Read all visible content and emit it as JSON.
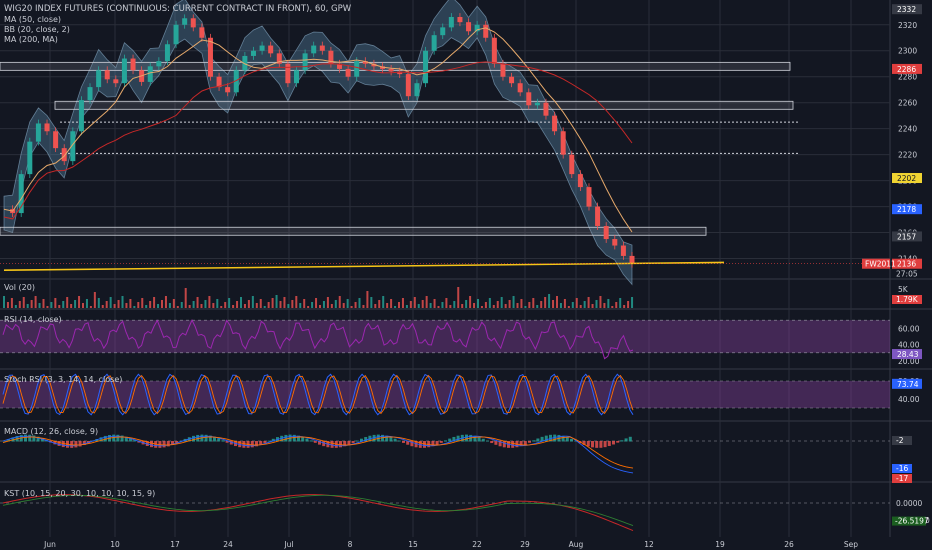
{
  "title": "WIG20 INDEX FUTURES (CONTINUOUS: CURRENT CONTRACT IN FRONT), 60, GPW",
  "indicator_labels": [
    "MA (50, close)",
    "BB (20, close, 2)",
    "MA (200, MA)"
  ],
  "pane_labels": {
    "vol": "Vol (20)",
    "rsi": "RSI (14, close)",
    "stoch": "Stoch RSI (3, 3, 14, 14, close)",
    "macd": "MACD (12, 26, close, 9)",
    "kst": "KST (10, 15, 20, 30, 10, 10, 10, 15, 9)"
  },
  "chart_data": {
    "type": "line",
    "x_ticks": [
      "Jun",
      "10",
      "17",
      "24",
      "Jul",
      "8",
      "15",
      "22",
      "29",
      "Aug",
      "12",
      "19",
      "26",
      "Sep"
    ],
    "price_axis": {
      "ticks": [
        "2320",
        "2300",
        "2280",
        "2260",
        "2240",
        "2220",
        "2200",
        "2180",
        "2160",
        "2140"
      ],
      "ylim": [
        2125,
        2336
      ]
    },
    "price_series": {
      "name": "",
      "values": [
        2178,
        2175,
        2205,
        2230,
        2244,
        2238,
        2225,
        2215,
        2238,
        2262,
        2272,
        2285,
        2278,
        2275,
        2294,
        2285,
        2276,
        2288,
        2292,
        2305,
        2320,
        2325,
        2318,
        2310,
        2280,
        2272,
        2268,
        2285,
        2296,
        2300,
        2304,
        2298,
        2290,
        2275,
        2285,
        2298,
        2304,
        2300,
        2290,
        2286,
        2280,
        2292,
        2290,
        2288,
        2286,
        2284,
        2282,
        2265,
        2275,
        2300,
        2312,
        2318,
        2326,
        2322,
        2315,
        2320,
        2310,
        2290,
        2280,
        2275,
        2268,
        2258,
        2260,
        2250,
        2238,
        2220,
        2205,
        2195,
        2180,
        2165,
        2155,
        2150,
        2142,
        2136
      ]
    },
    "horizontal_levels": [
      2288,
      2258,
      2161
    ],
    "dotted_levels": [
      2245,
      2221
    ],
    "price_labels": [
      {
        "value": 2332,
        "text": "2332",
        "color": "#c9ccd4"
      },
      {
        "value": 2286,
        "text": "2286",
        "color": "#e03e3e"
      },
      {
        "value": 2202,
        "text": "2202",
        "color": "#f0d432"
      },
      {
        "value": 2178,
        "text": "2178",
        "color": "#2962ff"
      },
      {
        "value": 2157,
        "text": "2157",
        "color": "#c9ccd4"
      },
      {
        "value": 2136,
        "text": "2136",
        "color": "#e03e3e"
      }
    ],
    "symbol_badge": "FW2011",
    "countdown": "27:05",
    "vol_axis": {
      "ticks": [
        "5K"
      ],
      "last_label": "1.79K"
    },
    "rsi_axis": {
      "ticks": [
        "60.00",
        "40.00",
        "20.00"
      ],
      "last_label": "28.43",
      "band": [
        30,
        70
      ],
      "ylim": [
        15,
        80
      ]
    },
    "stoch_axis": {
      "ticks": [
        "80.00",
        "40.00"
      ],
      "last_label": "73.74",
      "band": [
        20,
        80
      ],
      "ylim": [
        0,
        100
      ]
    },
    "macd_axis": {
      "last_labels": [
        "-2",
        "-16",
        "-17"
      ]
    },
    "kst_axis": {
      "ticks": [
        "0.0000",
        "-30.0000"
      ],
      "last_label": "-26.5197"
    },
    "colors": {
      "background": "#131722",
      "grid": "#2a2e39",
      "candle_up": "#26a69a",
      "candle_down": "#ef5350",
      "bb_fill": "#5f8fb3",
      "ma50": "#e6a96b",
      "ma200": "#c62828",
      "trendline": "#f5c518",
      "osc_band": "#7e3d95"
    }
  }
}
